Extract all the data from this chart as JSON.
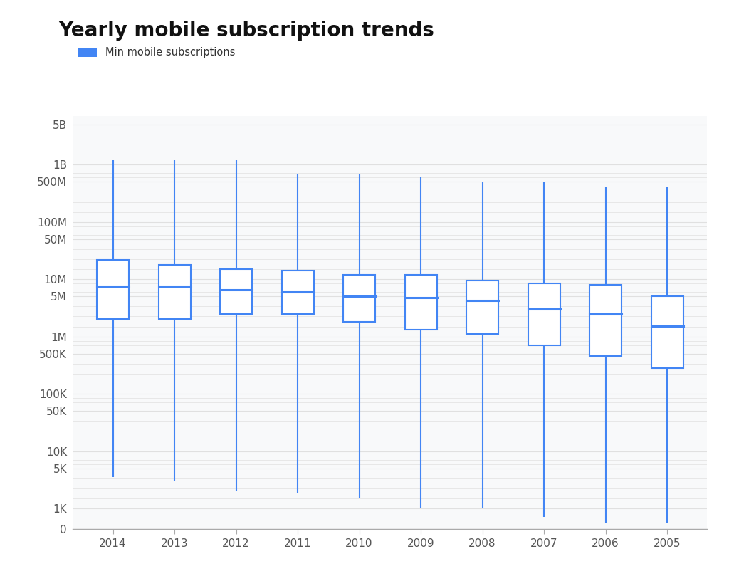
{
  "title": "Yearly mobile subscription trends",
  "legend_label": "Min mobile subscriptions",
  "box_color": "#4285F4",
  "background_color": "#ffffff",
  "plot_bg_color": "#f8f9fa",
  "years": [
    "2014",
    "2013",
    "2012",
    "2011",
    "2010",
    "2009",
    "2008",
    "2007",
    "2006",
    "2005"
  ],
  "boxes": {
    "2014": {
      "whislo": 3500,
      "q1": 2000000,
      "med": 7500000,
      "q3": 22000000,
      "whishi": 1200000000
    },
    "2013": {
      "whislo": 3000,
      "q1": 2000000,
      "med": 7500000,
      "q3": 18000000,
      "whishi": 1200000000
    },
    "2012": {
      "whislo": 2000,
      "q1": 2500000,
      "med": 6500000,
      "q3": 15000000,
      "whishi": 1200000000
    },
    "2011": {
      "whislo": 1800,
      "q1": 2500000,
      "med": 6000000,
      "q3": 14000000,
      "whishi": 700000000
    },
    "2010": {
      "whislo": 1500,
      "q1": 1800000,
      "med": 5000000,
      "q3": 12000000,
      "whishi": 700000000
    },
    "2009": {
      "whislo": 1000,
      "q1": 1300000,
      "med": 4800000,
      "q3": 12000000,
      "whishi": 600000000
    },
    "2008": {
      "whislo": 1000,
      "q1": 1100000,
      "med": 4200000,
      "q3": 9500000,
      "whishi": 500000000
    },
    "2007": {
      "whislo": 700,
      "q1": 700000,
      "med": 3000000,
      "q3": 8500000,
      "whishi": 500000000
    },
    "2006": {
      "whislo": 500,
      "q1": 450000,
      "med": 2500000,
      "q3": 8000000,
      "whishi": 400000000
    },
    "2005": {
      "whislo": 500,
      "q1": 280000,
      "med": 1500000,
      "q3": 5000000,
      "whishi": 400000000
    }
  },
  "ytick_labels": [
    "0",
    "1K",
    "5K",
    "10K",
    "50K",
    "100K",
    "500K",
    "1M",
    "5M",
    "10M",
    "50M",
    "100M",
    "500M",
    "1B",
    "5B"
  ],
  "ytick_values": [
    0,
    1000,
    5000,
    10000,
    50000,
    100000,
    500000,
    1000000,
    5000000,
    10000000,
    50000000,
    100000000,
    500000000,
    1000000000,
    5000000000
  ],
  "grid_color": "#e0e0e0",
  "title_fontsize": 20,
  "tick_fontsize": 11,
  "linthresh": 600,
  "linscale": 0.12
}
